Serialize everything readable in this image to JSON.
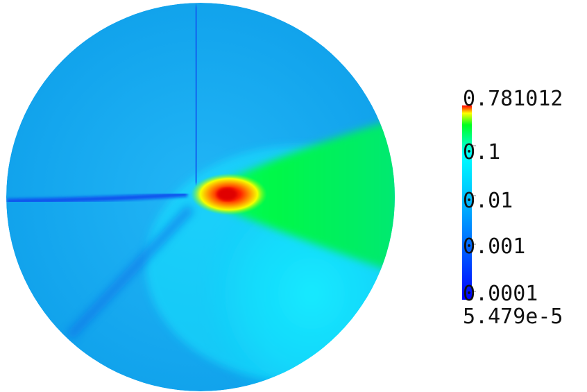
{
  "colorbar": {
    "max_label": "0.781012",
    "tick_labels": [
      "0.1",
      "0.01",
      "0.001",
      "0.0001"
    ],
    "min_label": "5.479e-5",
    "scale": "log",
    "colormap": [
      "#0000ff",
      "#00a0ff",
      "#00ffff",
      "#00ff00",
      "#ffff00",
      "#ff0000"
    ]
  },
  "field": {
    "peak_color": "#ff0000",
    "background_color": "#12a6f0"
  }
}
